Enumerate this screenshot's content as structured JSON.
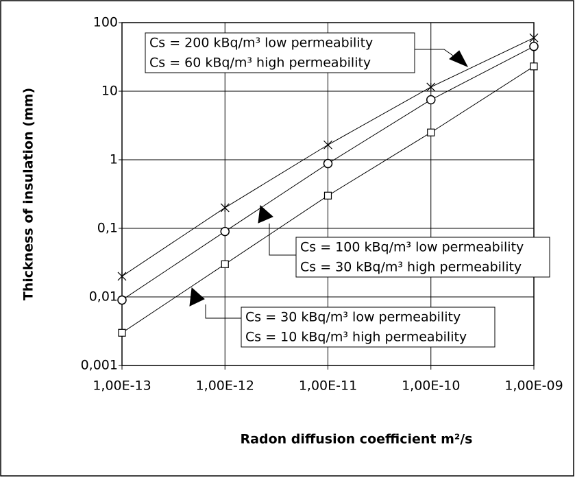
{
  "chart_data": {
    "type": "line",
    "xlabel": "Radon diffusion coefficient m²/s",
    "ylabel": "Thickness of insulation (mm)",
    "log_x": true,
    "log_y": true,
    "grid": true,
    "x": [
      1e-13,
      1e-12,
      1e-11,
      1e-10,
      1e-09
    ],
    "xlim": [
      1e-13,
      1e-09
    ],
    "xticks": [
      {
        "value": 1e-13,
        "label": "1,00E-13"
      },
      {
        "value": 1e-12,
        "label": "1,00E-12"
      },
      {
        "value": 1e-11,
        "label": "1,00E-11"
      },
      {
        "value": 1e-10,
        "label": "1,00E-10"
      },
      {
        "value": 1e-09,
        "label": "1,00E-09"
      }
    ],
    "ylim": [
      0.001,
      100
    ],
    "yticks": [
      {
        "value": 0.001,
        "label": "0,001"
      },
      {
        "value": 0.01,
        "label": "0,01"
      },
      {
        "value": 0.1,
        "label": "0,1"
      },
      1,
      10,
      100
    ],
    "series": [
      {
        "marker": "x",
        "color": "#000000",
        "values": [
          0.02,
          0.2,
          1.65,
          11.5,
          60
        ]
      },
      {
        "marker": "circle",
        "color": "#000000",
        "values": [
          0.009,
          0.09,
          0.88,
          7.5,
          45
        ]
      },
      {
        "marker": "square",
        "color": "#000000",
        "values": [
          0.003,
          0.03,
          0.3,
          2.5,
          23
        ]
      }
    ],
    "annotations": [
      {
        "lines": [
          "Cs = 200 kBq/m³ low permeability",
          "Cs = 60 kBq/m³ high permeability"
        ]
      },
      {
        "lines": [
          "Cs = 100 kBq/m³ low permeability",
          "Cs = 30 kBq/m³ high permeability"
        ]
      },
      {
        "lines": [
          "Cs = 30 kBq/m³ low permeability",
          "Cs = 10 kBq/m³ high permeability"
        ]
      }
    ]
  }
}
